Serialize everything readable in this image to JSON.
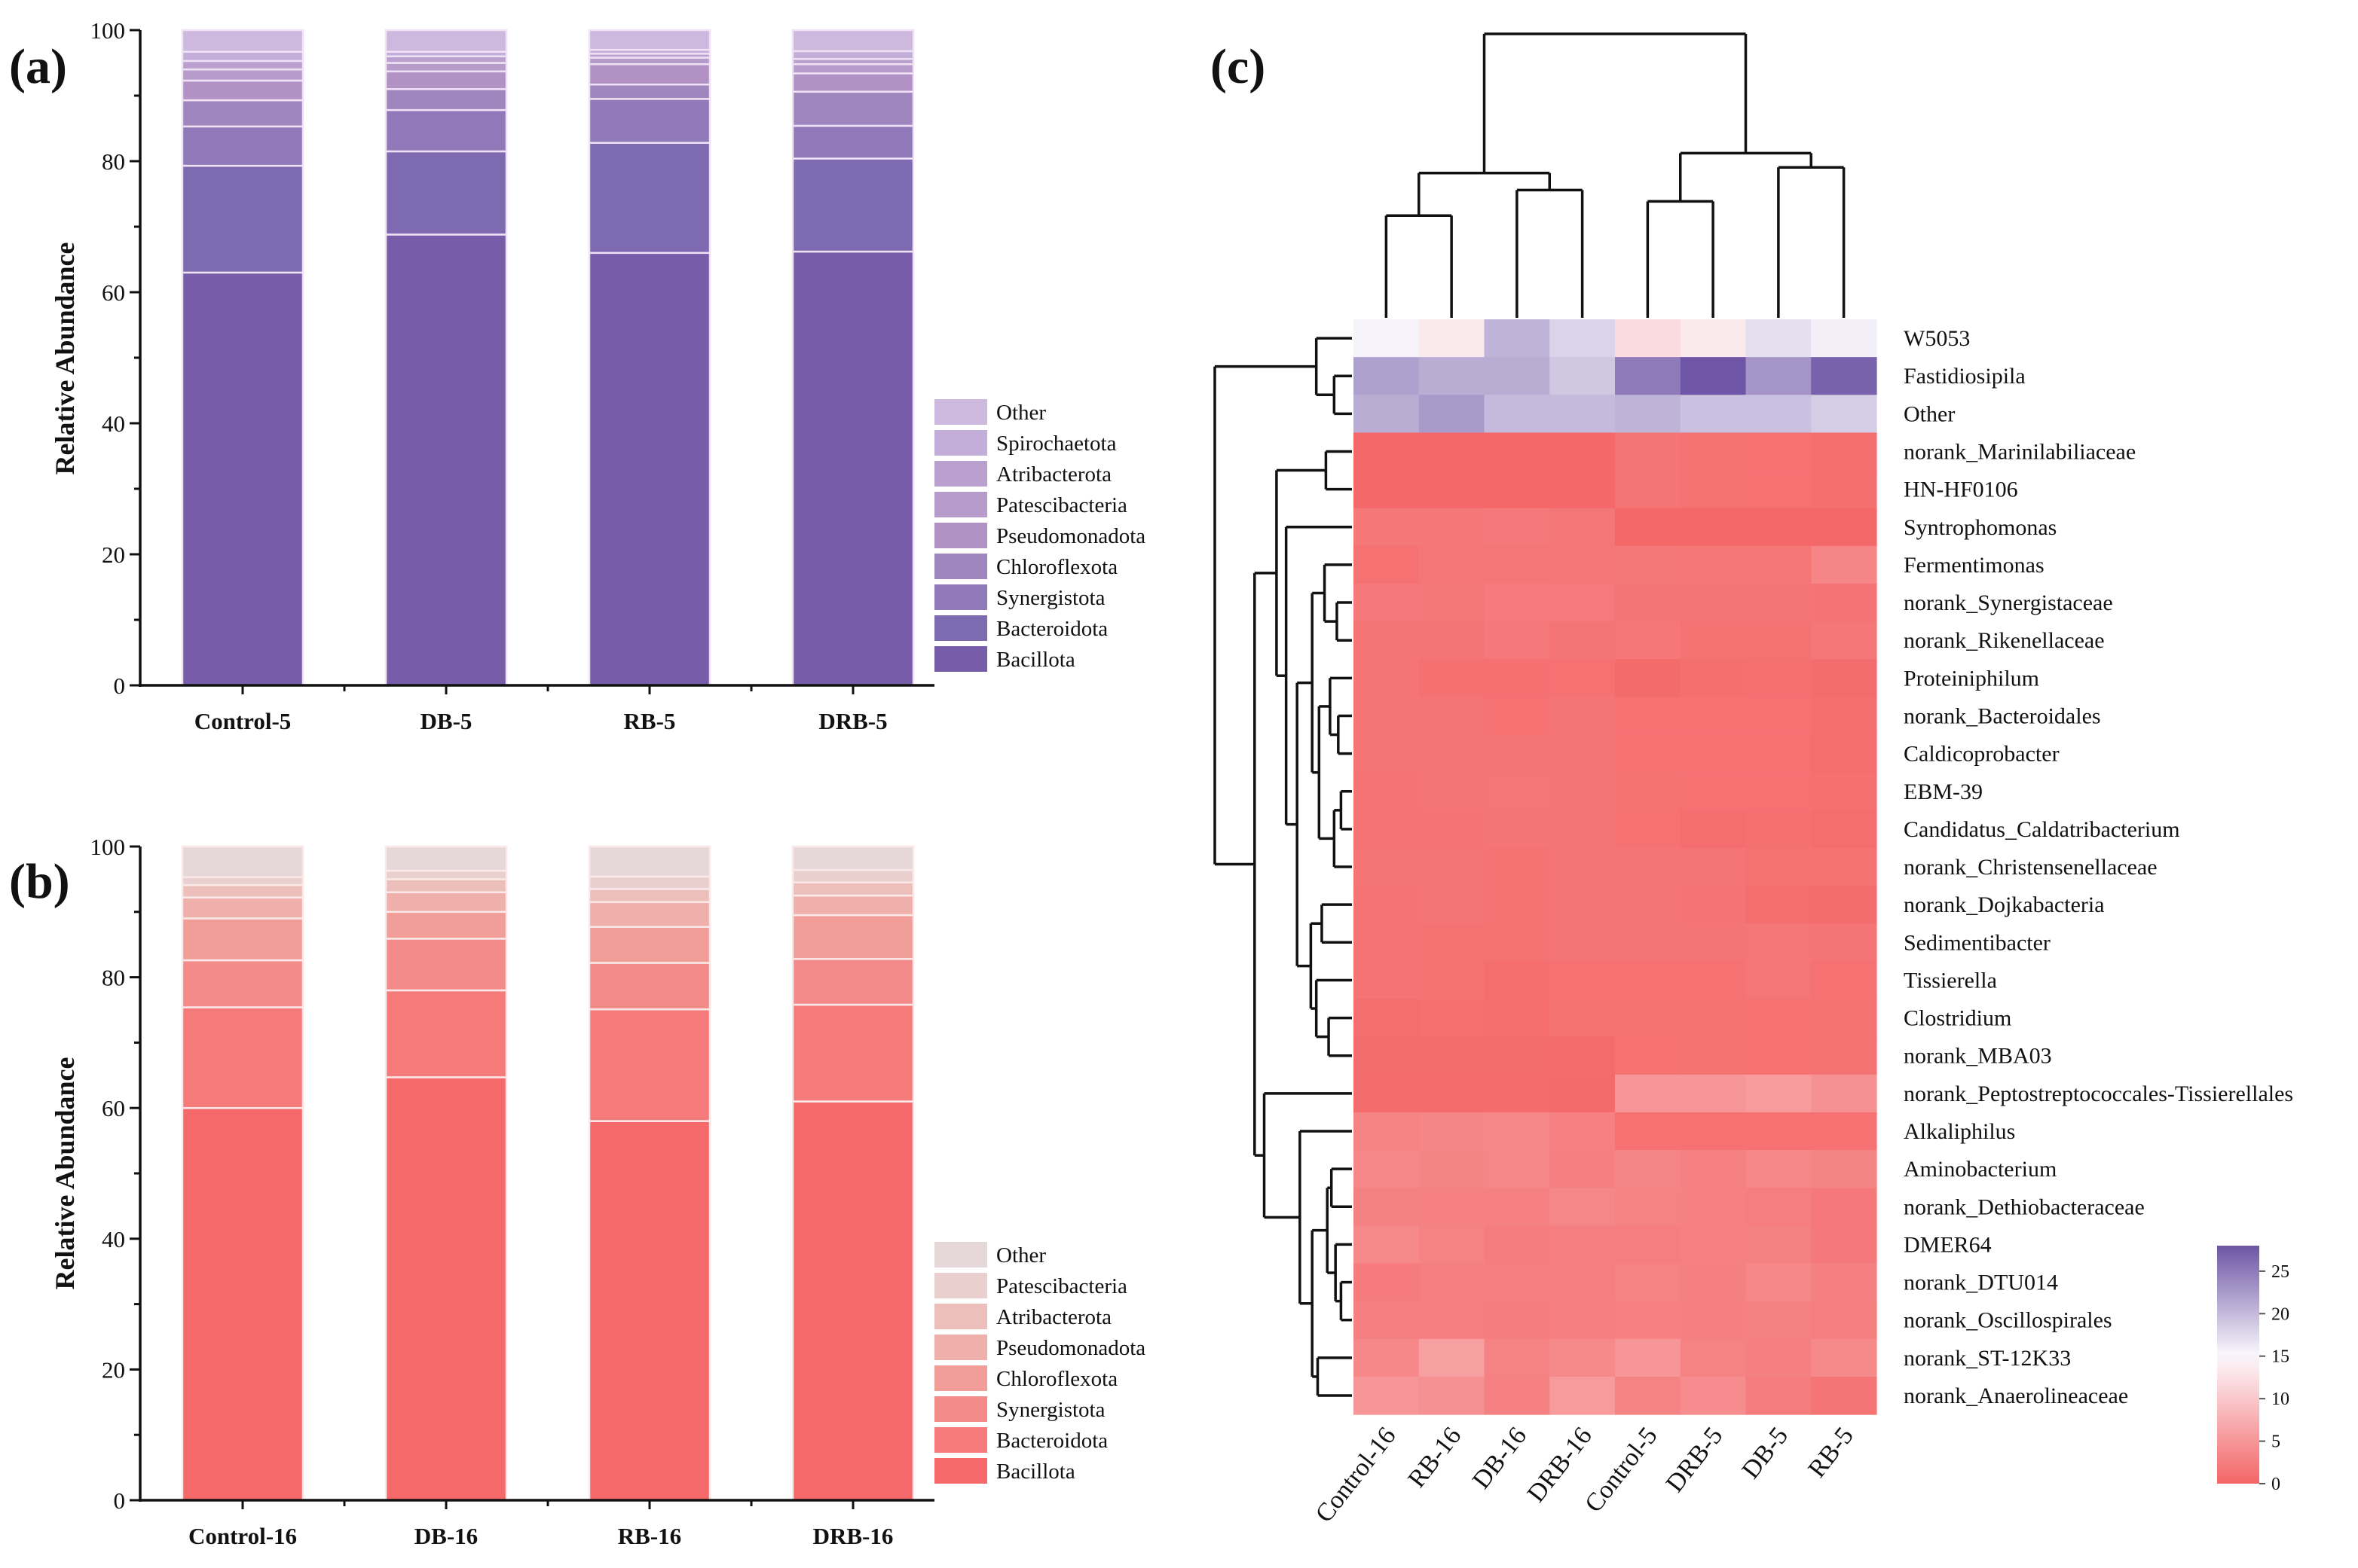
{
  "chart_data": [
    {
      "id": "a",
      "panel_label": "(a)",
      "type": "bar",
      "stacked": true,
      "ylabel": "Relative Abundance",
      "xlabel": "",
      "ylim": [
        0,
        100
      ],
      "yticks": [
        "0",
        "20",
        "40",
        "60",
        "80",
        "100"
      ],
      "categories": [
        "Control-5",
        "DB-5",
        "RB-5",
        "DRB-5"
      ],
      "legend_position": "right-bottom",
      "series": [
        {
          "name": "Bacillota",
          "color": "#765ca9",
          "values": [
            63.0,
            68.8,
            66.0,
            66.2
          ]
        },
        {
          "name": "Bacteroidota",
          "color": "#7e6ab0",
          "values": [
            16.3,
            12.7,
            16.8,
            14.2
          ]
        },
        {
          "name": "Synergistota",
          "color": "#8f79b8",
          "values": [
            6.0,
            6.3,
            6.7,
            5.0
          ]
        },
        {
          "name": "Chloroflexota",
          "color": "#a086bf",
          "values": [
            4.0,
            3.2,
            2.2,
            5.2
          ]
        },
        {
          "name": "Pseudomonadota",
          "color": "#b292c5",
          "values": [
            3.0,
            2.7,
            3.1,
            2.8
          ]
        },
        {
          "name": "Patescibacteria",
          "color": "#b79bcb",
          "values": [
            1.7,
            1.3,
            1.0,
            1.4
          ]
        },
        {
          "name": "Atribacterota",
          "color": "#b9a0cf",
          "values": [
            1.3,
            1.0,
            0.6,
            0.8
          ]
        },
        {
          "name": "Spirochaetota",
          "color": "#c2aed8",
          "values": [
            1.4,
            0.7,
            0.6,
            1.2
          ]
        },
        {
          "name": "Other",
          "color": "#cdb8de",
          "values": [
            3.3,
            3.3,
            3.0,
            3.2
          ]
        }
      ]
    },
    {
      "id": "b",
      "panel_label": "(b)",
      "type": "bar",
      "stacked": true,
      "ylabel": "Relative Abundance",
      "xlabel": "",
      "ylim": [
        0,
        100
      ],
      "yticks": [
        "0",
        "20",
        "40",
        "60",
        "80",
        "100"
      ],
      "categories": [
        "Control-16",
        "DB-16",
        "RB-16",
        "DRB-16"
      ],
      "legend_position": "right-bottom",
      "series": [
        {
          "name": "Bacillota",
          "color": "#f6696a",
          "values": [
            60.0,
            64.7,
            58.0,
            61.0
          ]
        },
        {
          "name": "Bacteroidota",
          "color": "#f47b7a",
          "values": [
            15.4,
            13.3,
            17.1,
            14.8
          ]
        },
        {
          "name": "Synergistota",
          "color": "#f28b89",
          "values": [
            7.2,
            7.9,
            7.1,
            7.0
          ]
        },
        {
          "name": "Chloroflexota",
          "color": "#f19d98",
          "values": [
            6.4,
            4.1,
            5.5,
            6.7
          ]
        },
        {
          "name": "Pseudomonadota",
          "color": "#efb0ab",
          "values": [
            3.2,
            3.0,
            3.8,
            3.0
          ]
        },
        {
          "name": "Atribacterota",
          "color": "#ecbfbb",
          "values": [
            1.9,
            2.0,
            2.0,
            2.0
          ]
        },
        {
          "name": "Patescibacteria",
          "color": "#e9d0ce",
          "values": [
            1.2,
            1.3,
            1.9,
            1.9
          ]
        },
        {
          "name": "Other",
          "color": "#e6d8d8",
          "values": [
            4.7,
            3.7,
            4.6,
            3.6
          ]
        }
      ]
    },
    {
      "id": "c",
      "panel_label": "(c)",
      "type": "heatmap",
      "columns": [
        "Control-16",
        "RB-16",
        "DB-16",
        "DRB-16",
        "Control-5",
        "DRB-5",
        "DB-5",
        "RB-5"
      ],
      "rows": [
        "W5053",
        "Fastidiosipila",
        "Other",
        "norank_Marinilabiliaceae",
        "HN-HF0106",
        "Syntrophomonas",
        "Fermentimonas",
        "norank_Synergistaceae",
        "norank_Rikenellaceae",
        "Proteiniphilum",
        "norank_Bacteroidales",
        "Caldicoprobacter",
        "EBM-39",
        "Candidatus_Caldatribacterium",
        "norank_Christensenellaceae",
        "norank_Dojkabacteria",
        "Sedimentibacter",
        "Tissierella",
        "Clostridium",
        "norank_MBA03",
        "norank_Peptostreptococcales-Tissierellales",
        "Alkaliphilus",
        "Aminobacterium",
        "norank_Dethiobacteraceae",
        "DMER64",
        "norank_DTU014",
        "norank_Oscillospirales",
        "norank_ST-12K33",
        "norank_Anaerolineaceae"
      ],
      "values": [
        [
          15.5,
          13.5,
          20.5,
          18.0,
          12.0,
          13.5,
          17.0,
          15.8
        ],
        [
          22.0,
          21.0,
          21.0,
          19.0,
          25.0,
          28.0,
          23.0,
          27.0
        ],
        [
          21.0,
          22.5,
          20.0,
          20.0,
          20.5,
          19.5,
          19.5,
          18.5
        ],
        [
          0.3,
          0.3,
          0.3,
          0.3,
          1.5,
          1.3,
          1.2,
          1.0
        ],
        [
          0.3,
          0.3,
          0.3,
          0.3,
          1.5,
          1.3,
          1.2,
          1.0
        ],
        [
          1.8,
          1.8,
          2.0,
          1.7,
          0.3,
          0.3,
          0.3,
          0.3
        ],
        [
          1.2,
          1.7,
          1.7,
          1.7,
          1.9,
          1.7,
          1.7,
          3.2
        ],
        [
          2.0,
          1.9,
          2.2,
          2.1,
          1.6,
          1.5,
          1.6,
          1.4
        ],
        [
          1.5,
          1.6,
          2.0,
          1.5,
          1.8,
          1.3,
          1.3,
          1.8
        ],
        [
          1.5,
          1.1,
          1.1,
          1.2,
          0.6,
          1.0,
          1.1,
          0.8
        ],
        [
          1.5,
          1.6,
          1.2,
          1.5,
          1.2,
          1.2,
          1.2,
          1.0
        ],
        [
          1.5,
          1.5,
          1.5,
          1.5,
          1.2,
          1.2,
          1.2,
          0.9
        ],
        [
          1.4,
          1.5,
          1.7,
          1.5,
          1.3,
          1.2,
          1.2,
          1.1
        ],
        [
          1.4,
          1.4,
          1.6,
          1.5,
          1.2,
          0.9,
          1.1,
          0.9
        ],
        [
          1.6,
          1.5,
          1.3,
          1.6,
          1.5,
          1.5,
          1.3,
          1.3
        ],
        [
          1.4,
          1.5,
          1.3,
          1.5,
          1.5,
          1.4,
          0.9,
          0.8
        ],
        [
          1.4,
          1.3,
          1.3,
          1.6,
          1.6,
          1.6,
          1.7,
          1.6
        ],
        [
          1.4,
          1.3,
          0.9,
          1.2,
          1.2,
          1.2,
          1.7,
          1.2
        ],
        [
          0.9,
          1.1,
          0.9,
          1.3,
          1.3,
          1.3,
          1.2,
          1.3
        ],
        [
          0.8,
          0.8,
          0.8,
          0.7,
          1.2,
          1.3,
          1.2,
          1.3
        ],
        [
          0.7,
          0.7,
          0.7,
          0.6,
          5.0,
          5.0,
          5.5,
          4.5
        ],
        [
          3.0,
          3.2,
          3.5,
          2.8,
          1.2,
          1.2,
          1.2,
          1.2
        ],
        [
          3.3,
          3.1,
          3.4,
          2.7,
          3.2,
          2.8,
          3.5,
          3.1
        ],
        [
          2.9,
          2.8,
          2.8,
          3.4,
          3.0,
          2.8,
          2.5,
          2.0
        ],
        [
          3.7,
          3.0,
          2.4,
          2.6,
          2.5,
          2.8,
          2.9,
          2.0
        ],
        [
          2.2,
          2.6,
          2.6,
          2.5,
          3.0,
          2.7,
          3.5,
          2.7
        ],
        [
          2.7,
          2.6,
          2.4,
          2.6,
          2.8,
          2.7,
          2.9,
          2.5
        ],
        [
          3.5,
          6.0,
          3.0,
          3.6,
          5.0,
          3.0,
          2.7,
          3.7
        ],
        [
          5.0,
          4.5,
          2.8,
          5.5,
          3.0,
          4.0,
          2.4,
          1.5
        ]
      ],
      "color_scale": {
        "range": [
          0,
          28
        ],
        "ticks": [
          "0",
          "5",
          "10",
          "15",
          "20",
          "25"
        ],
        "colors": [
          "#f46566",
          "#fbf9fd",
          "#6e55a5"
        ],
        "mid": 15
      },
      "col_dendrogram": {
        "h": 10,
        "c": [
          {
            "h": 5.1,
            "c": [
              {
                "h": 3.6,
                "c": [
                  0,
                  1
                ]
              },
              {
                "h": 4.5,
                "c": [
                  2,
                  3
                ]
              }
            ]
          },
          {
            "h": 5.8,
            "c": [
              {
                "h": 4.1,
                "c": [
                  4,
                  5
                ]
              },
              {
                "h": 5.3,
                "c": [
                  6,
                  7
                ]
              }
            ]
          }
        ]
      },
      "row_dendrogram": {
        "h": 10,
        "c": [
          {
            "h": 2.6,
            "c": [
              0,
              {
                "h": 1.3,
                "c": [
                  1,
                  2
                ]
              }
            ]
          },
          {
            "h": 7.1,
            "c": [
              {
                "h": 5.5,
                "c": [
                  {
                    "h": 1.9,
                    "c": [
                      3,
                      4
                    ]
                  },
                  {
                    "h": 4.8,
                    "c": [
                      5,
                      {
                        "h": 4.0,
                        "c": [
                          {
                            "h": 2.9,
                            "c": [
                              {
                                "h": 2.0,
                                "c": [
                                  6,
                                  {
                                    "h": 1.1,
                                    "c": [
                                      7,
                                      8
                                    ]
                                  }
                                ]
                              },
                              {
                                "h": 2.4,
                                "c": [
                                  {
                                    "h": 1.6,
                                    "c": [
                                      9,
                                      {
                                        "h": 1.0,
                                        "c": [
                                          10,
                                          11
                                        ]
                                      }
                                    ]
                                  },
                                  {
                                    "h": 1.3,
                                    "c": [
                                      {
                                        "h": 0.8,
                                        "c": [
                                          12,
                                          13
                                        ]
                                      },
                                      14
                                    ]
                                  }
                                ]
                              }
                            ]
                          },
                          {
                            "h": 3.0,
                            "c": [
                              {
                                "h": 2.2,
                                "c": [
                                  15,
                                  16
                                ]
                              },
                              {
                                "h": 2.6,
                                "c": [
                                  17,
                                  {
                                    "h": 1.7,
                                    "c": [
                                      18,
                                      19
                                    ]
                                  }
                                ]
                              }
                            ]
                          }
                        ]
                      }
                    ]
                  }
                ]
              },
              {
                "h": 6.4,
                "c": [
                  20,
                  {
                    "h": 3.8,
                    "c": [
                      21,
                      {
                        "h": 2.9,
                        "c": [
                          {
                            "h": 1.8,
                            "c": [
                              {
                                "h": 1.5,
                                "c": [
                                  22,
                                  23
                                ]
                              },
                              {
                                "h": 1.2,
                                "c": [
                                  24,
                                  {
                                    "h": 0.8,
                                    "c": [
                                      25,
                                      26
                                    ]
                                  }
                                ]
                              }
                            ]
                          },
                          {
                            "h": 2.5,
                            "c": [
                              27,
                              28
                            ]
                          }
                        ]
                      }
                    ]
                  }
                ]
              }
            ]
          }
        ]
      }
    }
  ]
}
